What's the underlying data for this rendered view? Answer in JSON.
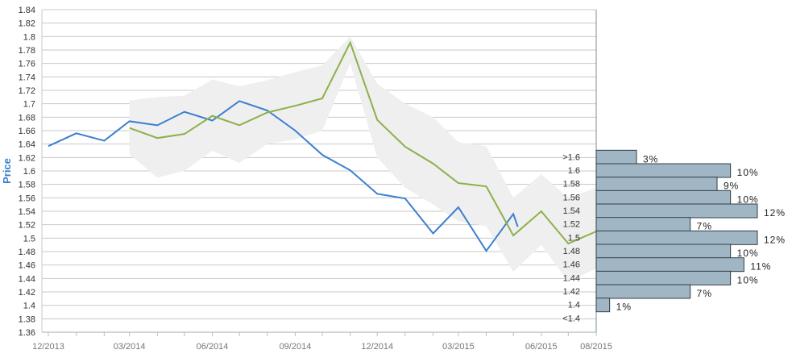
{
  "chart_data": {
    "type": "line",
    "ylabel": "Price",
    "ylim": [
      1.36,
      1.84
    ],
    "y_ticks": [
      "1.36",
      "1.38",
      "1.4",
      "1.42",
      "1.44",
      "1.46",
      "1.48",
      "1.5",
      "1.52",
      "1.54",
      "1.56",
      "1.58",
      "1.6",
      "1.62",
      "1.64",
      "1.66",
      "1.68",
      "1.7",
      "1.72",
      "1.74",
      "1.76",
      "1.78",
      "1.8",
      "1.82",
      "1.84"
    ],
    "x_ticks": [
      "12/2013",
      "03/2014",
      "06/2014",
      "09/2014",
      "12/2014",
      "03/2015",
      "06/2015",
      "08/2015"
    ],
    "grid": true,
    "colors": {
      "blue": "#3a7fcf",
      "green": "#8db04a",
      "band": "#efefef",
      "bar": "#a0b6c4",
      "bar_stroke": "#2e3e48",
      "ylabel": "#3a7fcf"
    },
    "series": [
      {
        "color": "blue",
        "points": [
          [
            "2013-12-01",
            1.637
          ],
          [
            "2014-01-01",
            1.656
          ],
          [
            "2014-02-01",
            1.645
          ],
          [
            "2014-03-01",
            1.674
          ],
          [
            "2014-04-01",
            1.668
          ],
          [
            "2014-05-01",
            1.688
          ],
          [
            "2014-06-01",
            1.675
          ],
          [
            "2014-07-01",
            1.704
          ],
          [
            "2014-08-01",
            1.69
          ],
          [
            "2014-09-01",
            1.66
          ],
          [
            "2014-10-01",
            1.624
          ],
          [
            "2014-11-01",
            1.601
          ],
          [
            "2014-12-01",
            1.566
          ],
          [
            "2015-01-01",
            1.559
          ],
          [
            "2015-02-01",
            1.507
          ],
          [
            "2015-03-01",
            1.546
          ],
          [
            "2015-04-01",
            1.481
          ],
          [
            "2015-05-01",
            1.536
          ],
          [
            "2015-05-06",
            1.517
          ]
        ]
      },
      {
        "color": "green",
        "points": [
          [
            "2014-03-01",
            1.664
          ],
          [
            "2014-04-01",
            1.649
          ],
          [
            "2014-05-01",
            1.655
          ],
          [
            "2014-06-01",
            1.682
          ],
          [
            "2014-07-01",
            1.668
          ],
          [
            "2014-08-01",
            1.687
          ],
          [
            "2014-09-01",
            1.697
          ],
          [
            "2014-10-01",
            1.708
          ],
          [
            "2014-11-01",
            1.791
          ],
          [
            "2014-12-01",
            1.676
          ],
          [
            "2015-01-01",
            1.636
          ],
          [
            "2015-02-01",
            1.611
          ],
          [
            "2015-03-01",
            1.582
          ],
          [
            "2015-04-01",
            1.577
          ],
          [
            "2015-05-01",
            1.504
          ],
          [
            "2015-06-01",
            1.54
          ],
          [
            "2015-07-01",
            1.492
          ],
          [
            "2015-08-01",
            1.51
          ]
        ]
      }
    ],
    "band": {
      "x": [
        "2014-03-01",
        "2014-04-01",
        "2014-05-01",
        "2014-06-01",
        "2014-07-01",
        "2014-08-01",
        "2014-09-01",
        "2014-10-01",
        "2014-11-01",
        "2014-12-01",
        "2015-01-01",
        "2015-02-01",
        "2015-03-01",
        "2015-04-01",
        "2015-05-01",
        "2015-06-01",
        "2015-07-01",
        "2015-08-01"
      ],
      "upper": [
        1.705,
        1.71,
        1.712,
        1.736,
        1.726,
        1.735,
        1.747,
        1.757,
        1.8,
        1.73,
        1.7,
        1.68,
        1.643,
        1.637,
        1.56,
        1.595,
        1.56,
        1.575
      ],
      "lower": [
        1.625,
        1.59,
        1.6,
        1.63,
        1.612,
        1.64,
        1.647,
        1.66,
        1.76,
        1.62,
        1.575,
        1.55,
        1.525,
        1.518,
        1.45,
        1.49,
        1.435,
        1.455
      ]
    },
    "distribution": [
      {
        "label": ">1.6",
        "pct_label": "3%",
        "value": 3
      },
      {
        "label": "1.6",
        "pct_label": "10%",
        "value": 10
      },
      {
        "label": "1.58",
        "pct_label": "9%",
        "value": 9
      },
      {
        "label": "1.56",
        "pct_label": "10%",
        "value": 10
      },
      {
        "label": "1.54",
        "pct_label": "12%",
        "value": 12
      },
      {
        "label": "1.52",
        "pct_label": "7%",
        "value": 7
      },
      {
        "label": "1.5",
        "pct_label": "12%",
        "value": 12
      },
      {
        "label": "1.48",
        "pct_label": "10%",
        "value": 10
      },
      {
        "label": "1.46",
        "pct_label": "11%",
        "value": 11
      },
      {
        "label": "1.44",
        "pct_label": "10%",
        "value": 10
      },
      {
        "label": "1.42",
        "pct_label": "7%",
        "value": 7
      },
      {
        "label": "1.4",
        "pct_label": "1%",
        "value": 1
      },
      {
        "label": "<1.4",
        "pct_label": "",
        "value": 0
      }
    ]
  }
}
